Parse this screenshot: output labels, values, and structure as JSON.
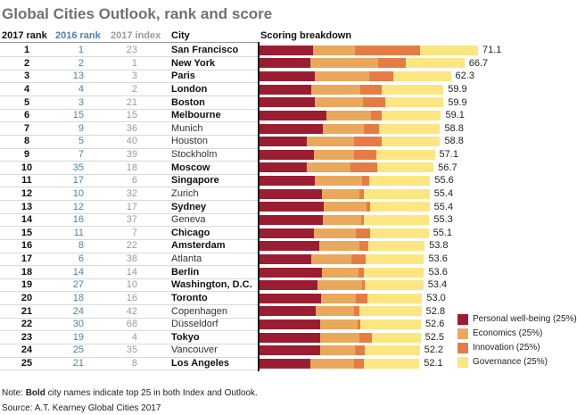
{
  "title": "Global Cities Outlook, rank and score",
  "headers": {
    "rank2017": "2017 rank",
    "rank2016": "2016 rank",
    "index2017": "2017 index",
    "city": "City",
    "breakdown": "Scoring breakdown"
  },
  "colors": {
    "personal": "#9b1d32",
    "economics": "#e9a85c",
    "innovation": "#e67c45",
    "governance": "#fbe681",
    "rank2016": "#4f82a8",
    "index2017": "#9a9a9a",
    "title": "#707173"
  },
  "note_prefix": "Note: ",
  "note_bold": "Bold",
  "note_rest": " city names indicate top 25 in both Index and Outlook.",
  "source": "Source: A.T. Kearney Global Cities 2017",
  "chart_data": {
    "type": "bar",
    "orientation": "horizontal",
    "stacked": true,
    "title": "Global Cities Outlook, rank and score",
    "series": [
      {
        "name": "Personal well-being (25%)",
        "color": "#9b1d32",
        "values": [
          17.6,
          16.9,
          18.3,
          17.1,
          18.3,
          22.0,
          20.8,
          15.7,
          17.9,
          15.7,
          18.3,
          20.5,
          21.2,
          20.8,
          17.9,
          19.7,
          17.1,
          20.5,
          19.0,
          20.1,
          18.6,
          20.0,
          20.0,
          20.0,
          16.9
        ]
      },
      {
        "name": "Economics (25%)",
        "color": "#e9a85c",
        "values": [
          13.6,
          21.9,
          17.6,
          15.9,
          15.5,
          14.3,
          13.3,
          15.2,
          13.0,
          14.2,
          15.1,
          12.3,
          13.7,
          12.3,
          13.7,
          13.1,
          13.1,
          11.9,
          14.4,
          11.5,
          12.3,
          12.0,
          12.7,
          11.2,
          14.0
        ]
      },
      {
        "name": "Innovation (25%)",
        "color": "#e67c45",
        "values": [
          21.1,
          9.0,
          7.8,
          6.9,
          7.1,
          3.6,
          5.0,
          9.0,
          7.3,
          8.5,
          2.4,
          1.4,
          1.3,
          1.0,
          4.6,
          2.7,
          4.6,
          1.7,
          1.0,
          3.6,
          1.8,
          0.9,
          4.0,
          3.3,
          3.2
        ]
      },
      {
        "name": "Governance (25%)",
        "color": "#fbe681",
        "values": [
          18.8,
          18.9,
          18.6,
          20.0,
          19.0,
          19.2,
          19.7,
          18.9,
          18.9,
          18.3,
          19.8,
          21.2,
          19.2,
          21.2,
          18.9,
          18.3,
          18.8,
          19.5,
          19.0,
          17.8,
          20.1,
          19.7,
          15.8,
          17.7,
          18.0
        ]
      }
    ],
    "rows": [
      {
        "rank2017": "1",
        "rank2016": "1",
        "index2017": "23",
        "city": "San Francisco",
        "bold": true,
        "score": "71.1"
      },
      {
        "rank2017": "2",
        "rank2016": "2",
        "index2017": "1",
        "city": "New York",
        "bold": true,
        "score": "66.7"
      },
      {
        "rank2017": "3",
        "rank2016": "13",
        "index2017": "3",
        "city": "Paris",
        "bold": true,
        "score": "62.3"
      },
      {
        "rank2017": "4",
        "rank2016": "4",
        "index2017": "2",
        "city": "London",
        "bold": true,
        "score": "59.9"
      },
      {
        "rank2017": "5",
        "rank2016": "3",
        "index2017": "21",
        "city": "Boston",
        "bold": true,
        "score": "59.9"
      },
      {
        "rank2017": "6",
        "rank2016": "15",
        "index2017": "15",
        "city": "Melbourne",
        "bold": true,
        "score": "59.1"
      },
      {
        "rank2017": "7",
        "rank2016": "9",
        "index2017": "36",
        "city": "Munich",
        "bold": false,
        "score": "58.8"
      },
      {
        "rank2017": "8",
        "rank2016": "5",
        "index2017": "40",
        "city": "Houston",
        "bold": false,
        "score": "58.8"
      },
      {
        "rank2017": "9",
        "rank2016": "7",
        "index2017": "39",
        "city": "Stockholm",
        "bold": false,
        "score": "57.1"
      },
      {
        "rank2017": "10",
        "rank2016": "35",
        "index2017": "18",
        "city": "Moscow",
        "bold": true,
        "score": "56.7"
      },
      {
        "rank2017": "11",
        "rank2016": "17",
        "index2017": "6",
        "city": "Singapore",
        "bold": true,
        "score": "55.6"
      },
      {
        "rank2017": "12",
        "rank2016": "10",
        "index2017": "32",
        "city": "Zurich",
        "bold": false,
        "score": "55.4"
      },
      {
        "rank2017": "13",
        "rank2016": "12",
        "index2017": "17",
        "city": "Sydney",
        "bold": true,
        "score": "55.4"
      },
      {
        "rank2017": "14",
        "rank2016": "16",
        "index2017": "37",
        "city": "Geneva",
        "bold": false,
        "score": "55.3"
      },
      {
        "rank2017": "15",
        "rank2016": "11",
        "index2017": "7",
        "city": "Chicago",
        "bold": true,
        "score": "55.1"
      },
      {
        "rank2017": "16",
        "rank2016": "8",
        "index2017": "22",
        "city": "Amsterdam",
        "bold": true,
        "score": "53.8"
      },
      {
        "rank2017": "17",
        "rank2016": "6",
        "index2017": "38",
        "city": "Atlanta",
        "bold": false,
        "score": "53.6"
      },
      {
        "rank2017": "18",
        "rank2016": "14",
        "index2017": "14",
        "city": "Berlin",
        "bold": true,
        "score": "53.6"
      },
      {
        "rank2017": "19",
        "rank2016": "27",
        "index2017": "10",
        "city": "Washington, D.C.",
        "bold": true,
        "score": "53.4"
      },
      {
        "rank2017": "20",
        "rank2016": "18",
        "index2017": "16",
        "city": "Toronto",
        "bold": true,
        "score": "53.0"
      },
      {
        "rank2017": "21",
        "rank2016": "24",
        "index2017": "42",
        "city": "Copenhagen",
        "bold": false,
        "score": "52.8"
      },
      {
        "rank2017": "22",
        "rank2016": "30",
        "index2017": "68",
        "city": "Düsseldorf",
        "bold": false,
        "score": "52.6"
      },
      {
        "rank2017": "23",
        "rank2016": "19",
        "index2017": "4",
        "city": "Tokyo",
        "bold": true,
        "score": "52.5"
      },
      {
        "rank2017": "24",
        "rank2016": "25",
        "index2017": "35",
        "city": "Vancouver",
        "bold": false,
        "score": "52.2"
      },
      {
        "rank2017": "25",
        "rank2016": "21",
        "index2017": "8",
        "city": "Los Angeles",
        "bold": true,
        "score": "52.1"
      }
    ],
    "xlim": [
      0,
      75
    ],
    "legend_position": "bottom-right",
    "grid": false
  }
}
